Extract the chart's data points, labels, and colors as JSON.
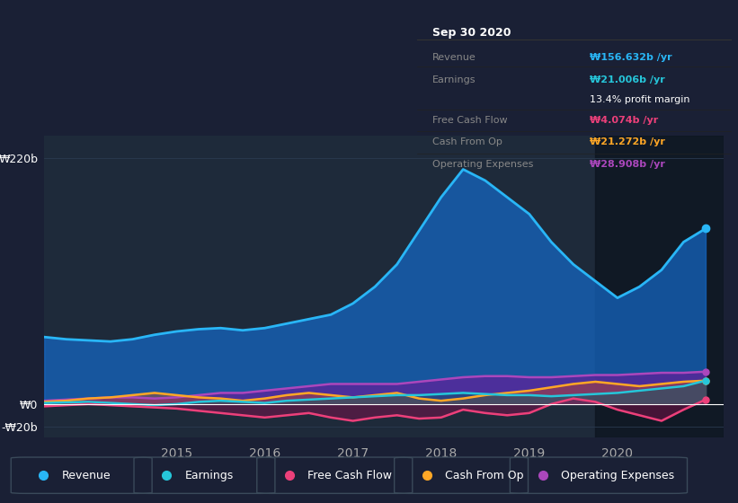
{
  "bg_color": "#1a2035",
  "plot_bg_color": "#1e2a3a",
  "grid_color": "#2a3a50",
  "ylabel_top": "₩220b",
  "ylabel_zero": "₩0",
  "ylabel_neg": "-₩20b",
  "x_ticks": [
    2015,
    2016,
    2017,
    2018,
    2019,
    2020
  ],
  "legend_items": [
    "Revenue",
    "Earnings",
    "Free Cash Flow",
    "Cash From Op",
    "Operating Expenses"
  ],
  "legend_colors": [
    "#29b6f6",
    "#26c6da",
    "#ec407a",
    "#ffa726",
    "#ab47bc"
  ],
  "info_title": "Sep 30 2020",
  "info_rows": [
    {
      "label": "Revenue",
      "label_color": "#888888",
      "value": "₩156.632b /yr",
      "value_color": "#29b6f6"
    },
    {
      "label": "Earnings",
      "label_color": "#888888",
      "value": "₩21.006b /yr",
      "value_color": "#26c6da"
    },
    {
      "label": "",
      "label_color": "#888888",
      "value": "13.4% profit margin",
      "value_color": "#ffffff"
    },
    {
      "label": "Free Cash Flow",
      "label_color": "#888888",
      "value": "₩4.074b /yr",
      "value_color": "#ec407a"
    },
    {
      "label": "Cash From Op",
      "label_color": "#888888",
      "value": "₩21.272b /yr",
      "value_color": "#ffa726"
    },
    {
      "label": "Operating Expenses",
      "label_color": "#888888",
      "value": "₩28.908b /yr",
      "value_color": "#ab47bc"
    }
  ],
  "revenue_x": [
    2013.5,
    2013.75,
    2014.0,
    2014.25,
    2014.5,
    2014.75,
    2015.0,
    2015.25,
    2015.5,
    2015.75,
    2016.0,
    2016.25,
    2016.5,
    2016.75,
    2017.0,
    2017.25,
    2017.5,
    2017.75,
    2018.0,
    2018.25,
    2018.5,
    2018.75,
    2019.0,
    2019.25,
    2019.5,
    2019.75,
    2020.0,
    2020.25,
    2020.5,
    2020.75,
    2021.0
  ],
  "revenue_y": [
    60,
    58,
    57,
    56,
    58,
    62,
    65,
    67,
    68,
    66,
    68,
    72,
    76,
    80,
    90,
    105,
    125,
    155,
    185,
    210,
    200,
    185,
    170,
    145,
    125,
    110,
    95,
    105,
    120,
    145,
    157
  ],
  "earnings_x": [
    2013.5,
    2013.75,
    2014.0,
    2014.25,
    2014.5,
    2014.75,
    2015.0,
    2015.25,
    2015.5,
    2015.75,
    2016.0,
    2016.25,
    2016.5,
    2016.75,
    2017.0,
    2017.25,
    2017.5,
    2017.75,
    2018.0,
    2018.25,
    2018.5,
    2018.75,
    2019.0,
    2019.25,
    2019.5,
    2019.75,
    2020.0,
    2020.25,
    2020.5,
    2020.75,
    2021.0
  ],
  "earnings_y": [
    1,
    1.5,
    2,
    1,
    0,
    -1,
    0,
    2,
    3,
    2,
    1,
    3,
    4,
    5,
    6,
    7,
    8,
    8,
    9,
    10,
    9,
    8,
    8,
    7,
    8,
    9,
    10,
    12,
    14,
    16,
    21
  ],
  "fcf_x": [
    2013.5,
    2013.75,
    2014.0,
    2014.25,
    2014.5,
    2014.75,
    2015.0,
    2015.25,
    2015.5,
    2015.75,
    2016.0,
    2016.25,
    2016.5,
    2016.75,
    2017.0,
    2017.25,
    2017.5,
    2017.75,
    2018.0,
    2018.25,
    2018.5,
    2018.75,
    2019.0,
    2019.25,
    2019.5,
    2019.75,
    2020.0,
    2020.25,
    2020.5,
    2020.75,
    2021.0
  ],
  "fcf_y": [
    -2,
    -1,
    0,
    -1,
    -2,
    -3,
    -4,
    -6,
    -8,
    -10,
    -12,
    -10,
    -8,
    -12,
    -15,
    -12,
    -10,
    -13,
    -12,
    -5,
    -8,
    -10,
    -8,
    0,
    5,
    2,
    -5,
    -10,
    -15,
    -5,
    4
  ],
  "cfo_x": [
    2013.5,
    2013.75,
    2014.0,
    2014.25,
    2014.5,
    2014.75,
    2015.0,
    2015.25,
    2015.5,
    2015.75,
    2016.0,
    2016.25,
    2016.5,
    2016.75,
    2017.0,
    2017.25,
    2017.5,
    2017.75,
    2018.0,
    2018.25,
    2018.5,
    2018.75,
    2019.0,
    2019.25,
    2019.5,
    2019.75,
    2020.0,
    2020.25,
    2020.5,
    2020.75,
    2021.0
  ],
  "cfo_y": [
    2,
    3,
    5,
    6,
    8,
    10,
    8,
    6,
    5,
    3,
    5,
    8,
    10,
    8,
    6,
    8,
    10,
    5,
    3,
    5,
    8,
    10,
    12,
    15,
    18,
    20,
    18,
    16,
    18,
    20,
    21
  ],
  "opex_x": [
    2013.5,
    2013.75,
    2014.0,
    2014.25,
    2014.5,
    2014.75,
    2015.0,
    2015.25,
    2015.5,
    2015.75,
    2016.0,
    2016.25,
    2016.5,
    2016.75,
    2017.0,
    2017.25,
    2017.5,
    2017.75,
    2018.0,
    2018.25,
    2018.5,
    2018.75,
    2019.0,
    2019.25,
    2019.5,
    2019.75,
    2020.0,
    2020.25,
    2020.5,
    2020.75,
    2021.0
  ],
  "opex_y": [
    3,
    4,
    5,
    6,
    6,
    5,
    6,
    8,
    10,
    10,
    12,
    14,
    16,
    18,
    18,
    18,
    18,
    20,
    22,
    24,
    25,
    25,
    24,
    24,
    25,
    26,
    26,
    27,
    28,
    28,
    29
  ],
  "highlight_x_start": 2019.75,
  "highlight_x_end": 2021.2,
  "ylim": [
    -30,
    240
  ],
  "xlim": [
    2013.5,
    2021.2
  ]
}
